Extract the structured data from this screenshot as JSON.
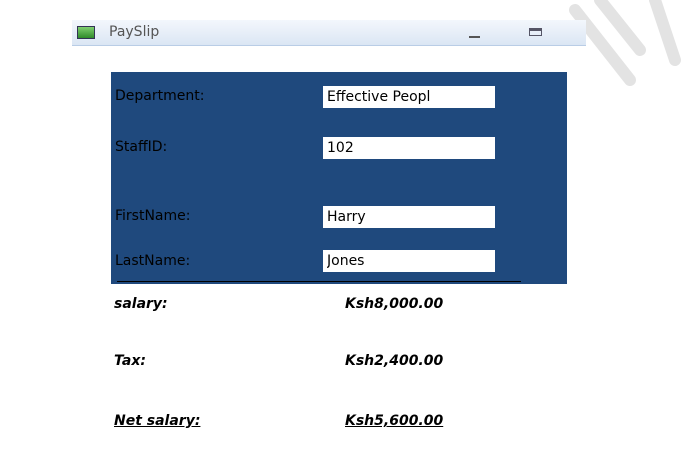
{
  "window": {
    "title": "PaySlip",
    "icon": "app-form-icon"
  },
  "form": {
    "department": {
      "label": "Department:",
      "value": "Effective Peopl"
    },
    "staff_id": {
      "label": "StaffID:",
      "value": "102"
    },
    "first_name": {
      "label": "FirstName:",
      "value": "Harry"
    },
    "last_name": {
      "label": "LastName:",
      "value": "Jones"
    }
  },
  "summary": {
    "salary": {
      "label": "salary:",
      "value": "Ksh8,000.00"
    },
    "tax": {
      "label": "Tax:",
      "value": "Ksh2,400.00"
    },
    "net": {
      "label": "Net salary:",
      "value": "Ksh5,600.00"
    }
  },
  "colors": {
    "panel": "#1f497d"
  }
}
